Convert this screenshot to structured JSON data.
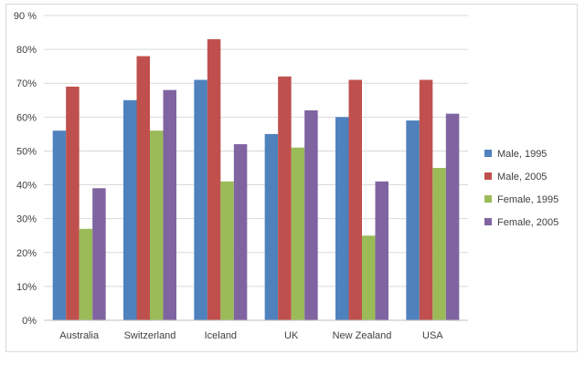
{
  "chart_data": {
    "type": "bar",
    "categories": [
      "Australia",
      "Switzerland",
      "Iceland",
      "UK",
      "New Zealand",
      "USA"
    ],
    "series": [
      {
        "name": "Male, 1995",
        "color": "#4f81bd",
        "values": [
          56,
          65,
          71,
          55,
          60,
          59
        ]
      },
      {
        "name": "Male, 2005",
        "color": "#c0504d",
        "values": [
          69,
          78,
          83,
          72,
          71,
          71
        ]
      },
      {
        "name": "Female, 1995",
        "color": "#9bbb59",
        "values": [
          27,
          56,
          41,
          51,
          25,
          45
        ]
      },
      {
        "name": "Female, 2005",
        "color": "#8064a2",
        "values": [
          39,
          68,
          52,
          62,
          41,
          61
        ]
      }
    ],
    "ylim": [
      0,
      90
    ],
    "yticks": [
      0,
      10,
      20,
      30,
      40,
      50,
      60,
      70,
      80,
      90
    ],
    "ytick_labels": [
      "0%",
      "10%",
      "20%",
      "30%",
      "40%",
      "50%",
      "60%",
      "70%",
      "80%",
      "90 %"
    ],
    "grid": true,
    "legend_position": "right"
  }
}
